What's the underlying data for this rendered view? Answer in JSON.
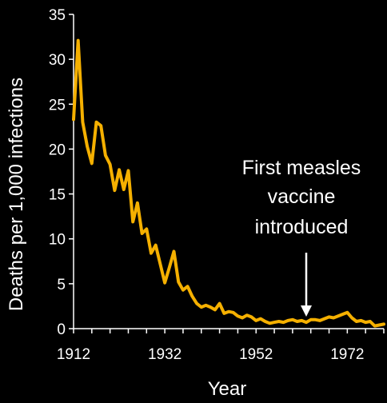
{
  "chart_data": {
    "type": "line",
    "title": "",
    "xlabel": "Year",
    "ylabel": "Deaths per 1,000 infections",
    "xlim": [
      1912,
      1980
    ],
    "ylim": [
      0,
      35
    ],
    "x_ticks": [
      1912,
      1932,
      1952,
      1972
    ],
    "y_ticks": [
      0,
      5,
      10,
      15,
      20,
      25,
      30,
      35
    ],
    "line_color": "#f5b000",
    "background_color": "#000000",
    "text_color": "#ffffff",
    "grid": false,
    "series": [
      {
        "x": [
          1912,
          1913,
          1914,
          1915,
          1916,
          1917,
          1918,
          1919,
          1920,
          1921,
          1922,
          1923,
          1924,
          1925,
          1926,
          1927,
          1928,
          1929,
          1930,
          1931,
          1932,
          1933,
          1934,
          1935,
          1936,
          1937,
          1938,
          1939,
          1940,
          1941,
          1942,
          1943,
          1944,
          1945,
          1946,
          1947,
          1948,
          1949,
          1950,
          1951,
          1952,
          1953,
          1954,
          1955,
          1956,
          1957,
          1958,
          1959,
          1960,
          1961,
          1962,
          1963,
          1964,
          1965,
          1966,
          1967,
          1968,
          1969,
          1970,
          1971,
          1972,
          1973,
          1974,
          1975,
          1976,
          1977,
          1978,
          1979,
          1980
        ],
        "y": [
          23.3,
          32.1,
          23,
          20.3,
          18.4,
          23,
          22.6,
          19.3,
          18.3,
          15.4,
          17.7,
          15.5,
          17.6,
          11.9,
          14,
          10.6,
          11.1,
          8.4,
          9.3,
          7.2,
          5.1,
          6.8,
          8.6,
          5.2,
          4.3,
          4.7,
          3.6,
          2.8,
          2.4,
          2.6,
          2.4,
          2.1,
          2.8,
          1.7,
          1.9,
          1.8,
          1.4,
          1.2,
          1.5,
          1.3,
          0.9,
          1.1,
          0.8,
          0.6,
          0.7,
          0.8,
          0.7,
          0.9,
          1,
          0.8,
          0.9,
          0.7,
          1,
          1,
          0.9,
          1.1,
          1.3,
          1.2,
          1.4,
          1.6,
          1.8,
          1.2,
          0.8,
          0.9,
          0.7,
          0.8,
          0.3,
          0.4,
          0.5
        ]
      }
    ],
    "annotation": {
      "lines": [
        "First measles",
        "vaccine",
        "introduced"
      ],
      "year": 1963
    }
  }
}
